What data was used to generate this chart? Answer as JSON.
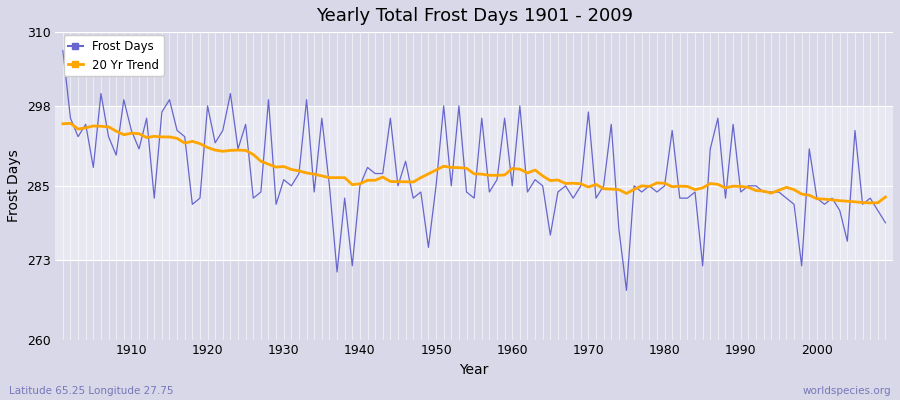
{
  "title": "Yearly Total Frost Days 1901 - 2009",
  "xlabel": "Year",
  "ylabel": "Frost Days",
  "bottom_left_label": "Latitude 65.25 Longitude 27.75",
  "bottom_right_label": "worldspecies.org",
  "legend_labels": [
    "Frost Days",
    "20 Yr Trend"
  ],
  "line_color": "#6666CC",
  "trend_color": "#FFA500",
  "bg_outer": "#D8D8E8",
  "bg_inner": "#E8E8F2",
  "ylim": [
    260,
    310
  ],
  "yticks": [
    260,
    273,
    285,
    298,
    310
  ],
  "xlim_min": 1900,
  "xlim_max": 2010,
  "years": [
    1901,
    1902,
    1903,
    1904,
    1905,
    1906,
    1907,
    1908,
    1909,
    1910,
    1911,
    1912,
    1913,
    1914,
    1915,
    1916,
    1917,
    1918,
    1919,
    1920,
    1921,
    1922,
    1923,
    1924,
    1925,
    1926,
    1927,
    1928,
    1929,
    1930,
    1931,
    1932,
    1933,
    1934,
    1935,
    1936,
    1937,
    1938,
    1939,
    1940,
    1941,
    1942,
    1943,
    1944,
    1945,
    1946,
    1947,
    1948,
    1949,
    1950,
    1951,
    1952,
    1953,
    1954,
    1955,
    1956,
    1957,
    1958,
    1959,
    1960,
    1961,
    1962,
    1963,
    1964,
    1965,
    1966,
    1967,
    1968,
    1969,
    1970,
    1971,
    1972,
    1973,
    1974,
    1975,
    1976,
    1977,
    1978,
    1979,
    1980,
    1981,
    1982,
    1983,
    1984,
    1985,
    1986,
    1987,
    1988,
    1989,
    1990,
    1991,
    1992,
    1993,
    1994,
    1995,
    1996,
    1997,
    1998,
    1999,
    2000,
    2001,
    2002,
    2003,
    2004,
    2005,
    2006,
    2007,
    2008,
    2009
  ],
  "frost_days": [
    307,
    296,
    293,
    295,
    288,
    300,
    293,
    290,
    299,
    294,
    291,
    296,
    283,
    297,
    299,
    294,
    293,
    282,
    283,
    298,
    292,
    294,
    300,
    291,
    295,
    283,
    284,
    299,
    282,
    286,
    285,
    287,
    299,
    284,
    296,
    285,
    271,
    283,
    272,
    285,
    288,
    287,
    287,
    296,
    285,
    289,
    283,
    284,
    275,
    285,
    298,
    285,
    298,
    284,
    283,
    296,
    284,
    286,
    296,
    285,
    298,
    284,
    286,
    285,
    277,
    284,
    285,
    283,
    285,
    297,
    283,
    285,
    295,
    278,
    268,
    285,
    284,
    285,
    284,
    285,
    294,
    283,
    283,
    284,
    272,
    291,
    296,
    283,
    295,
    284,
    285,
    285,
    284,
    284,
    284,
    283,
    282,
    272,
    291,
    283,
    282,
    283,
    281,
    276,
    294,
    282,
    283,
    281,
    279
  ]
}
